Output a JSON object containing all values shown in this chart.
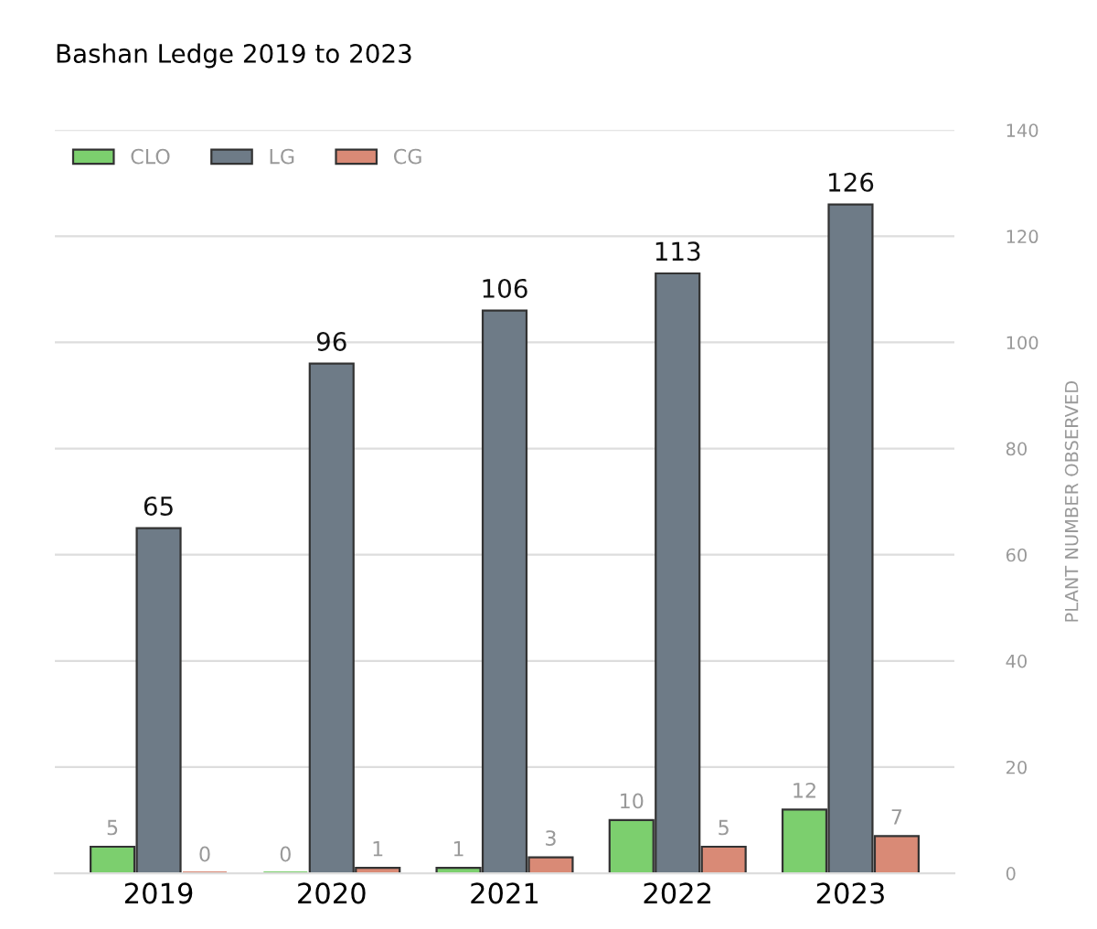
{
  "chart_data": {
    "type": "bar",
    "title": "Bashan Ledge 2019 to 2023",
    "ylabel": "PLANT NUMBER OBSERVED",
    "categories": [
      "2019",
      "2020",
      "2021",
      "2022",
      "2023"
    ],
    "series": [
      {
        "name": "CLO",
        "color": "#7ccf6e",
        "values": [
          5,
          0,
          1,
          10,
          12
        ]
      },
      {
        "name": "LG",
        "color": "#6e7b87",
        "values": [
          65,
          96,
          106,
          113,
          126
        ]
      },
      {
        "name": "CG",
        "color": "#d98a76",
        "values": [
          0,
          1,
          3,
          5,
          7
        ]
      }
    ],
    "ylim": [
      0,
      140
    ],
    "yticks": [
      0,
      20,
      40,
      60,
      80,
      100,
      120,
      140
    ],
    "grid": "y",
    "legend": "top left",
    "data_labels": true
  }
}
